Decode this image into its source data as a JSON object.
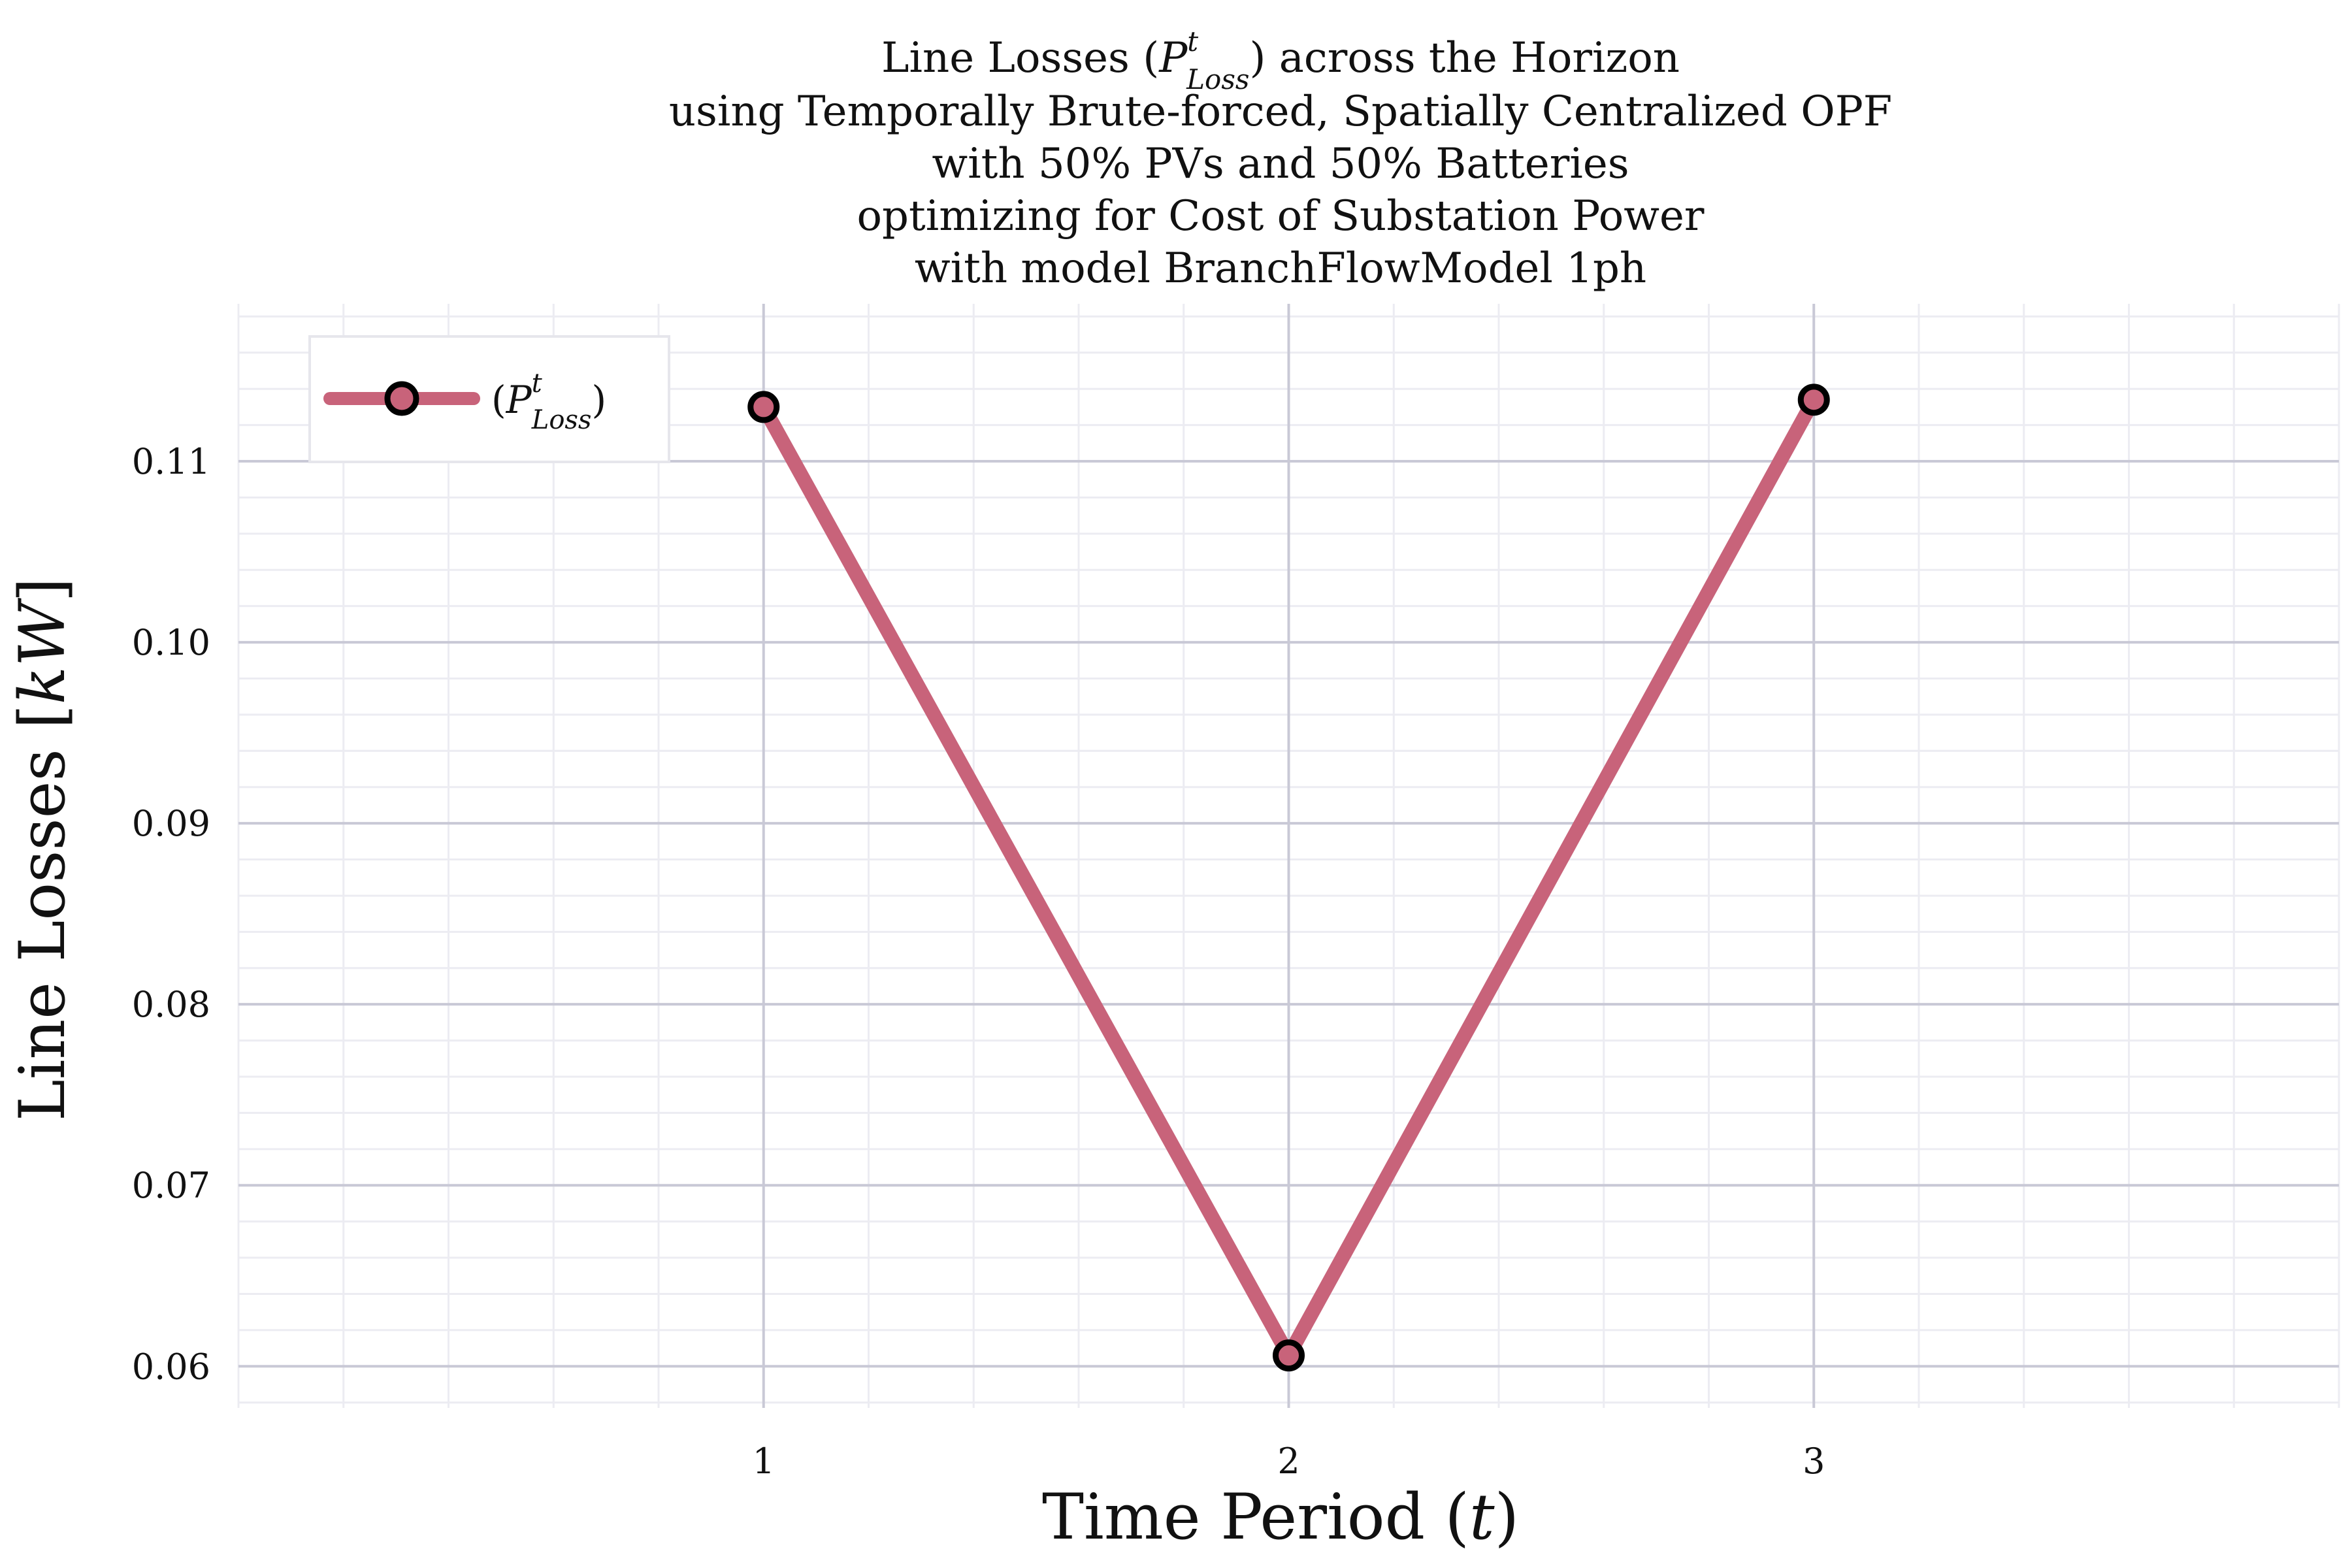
{
  "chart_data": {
    "type": "line",
    "title_lines": [
      [
        "Line Losses (",
        "P",
        "t",
        "Loss",
        ") across the Horizon"
      ],
      "using Temporally Brute-forced, Spatially Centralized OPF",
      "with 50% PVs and 50% Batteries",
      "optimizing for Cost of Substation Power",
      "with model BranchFlowModel 1ph"
    ],
    "title_prefix": "Line Losses (",
    "title_symbol": "P",
    "title_sup": "t",
    "title_sub": "Loss",
    "title_suffix": ") across the Horizon",
    "title_rest": [
      "using Temporally Brute-forced, Spatially Centralized OPF",
      "with 50% PVs and 50% Batteries",
      "optimizing for Cost of Substation Power",
      "with model BranchFlowModel 1ph"
    ],
    "xlabel_prefix": "Time Period (",
    "xlabel_symbol": "t",
    "xlabel_suffix": ")",
    "ylabel_prefix": "Line Losses [",
    "ylabel_symbol": "kW",
    "ylabel_suffix": "]",
    "x": [
      1,
      2,
      3
    ],
    "xticks": [
      "1",
      "2",
      "3"
    ],
    "xlim": [
      0,
      4
    ],
    "yticks": [
      "0.06",
      "0.07",
      "0.08",
      "0.09",
      "0.10",
      "0.11"
    ],
    "ylim": [
      0.0577,
      0.1187
    ],
    "grid": true,
    "legend_position": "top-left",
    "series": [
      {
        "legend_open": "(",
        "legend_symbol": "P",
        "legend_sup": "t",
        "legend_sub": "Loss",
        "legend_close": ")",
        "values": [
          0.113,
          0.0606,
          0.1134
        ],
        "color": "#c8637a",
        "marker_edge": "#000000"
      }
    ]
  }
}
